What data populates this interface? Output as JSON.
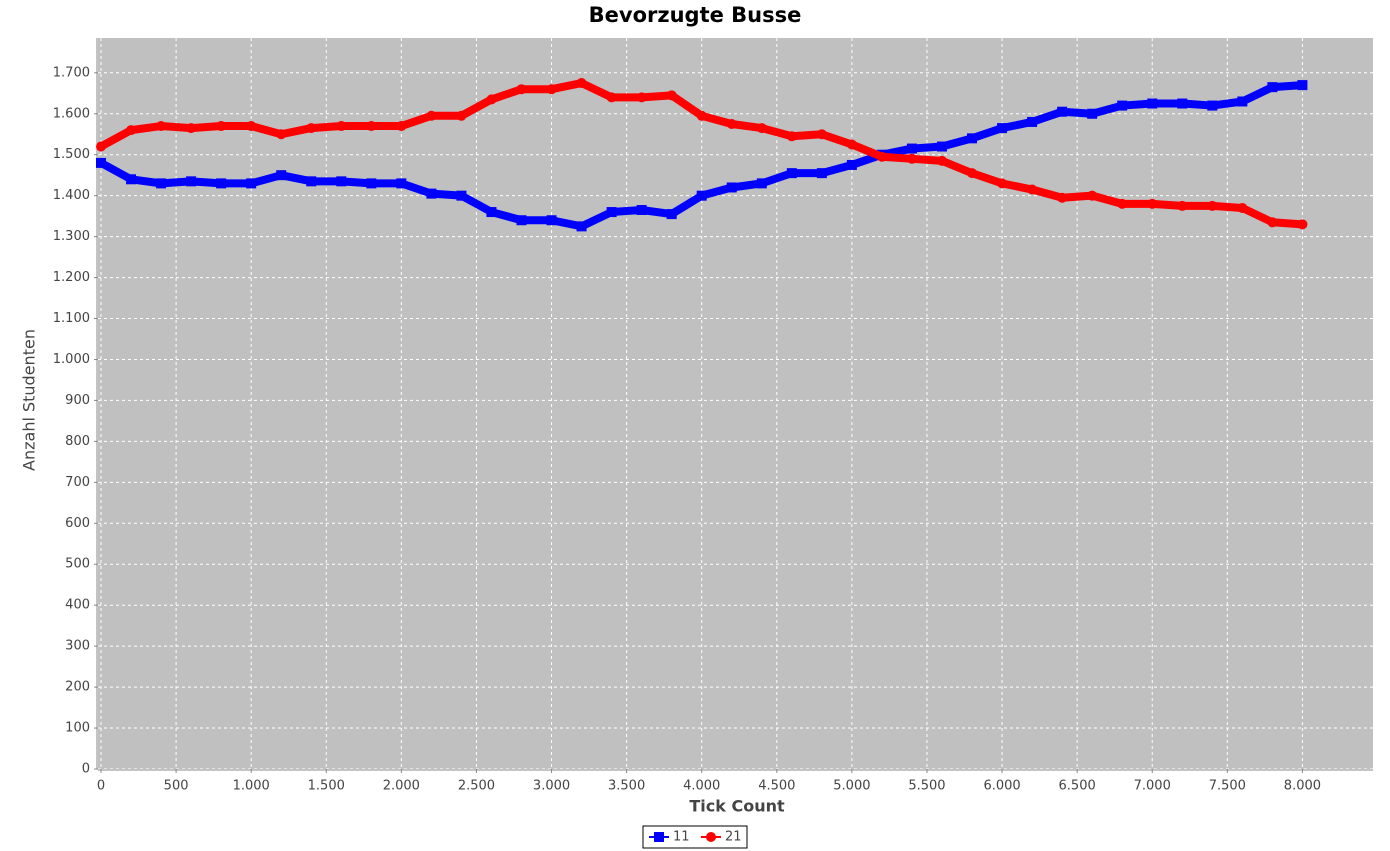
{
  "chart_data": {
    "type": "line",
    "title": "Bevorzugte Busse",
    "x_label": "Tick Count",
    "y_label": "Anzahl Studenten",
    "x": [
      0,
      200,
      400,
      600,
      800,
      1000,
      1200,
      1400,
      1600,
      1800,
      2000,
      2200,
      2400,
      2600,
      2800,
      3000,
      3200,
      3400,
      3600,
      3800,
      4000,
      4200,
      4400,
      4600,
      4800,
      5000,
      5200,
      5400,
      5600,
      5800,
      6000,
      6200,
      6400,
      6600,
      6800,
      7000,
      7200,
      7400,
      7600,
      7800,
      8000
    ],
    "series": [
      {
        "name": "11",
        "color": "#0000ff",
        "marker": "square",
        "values": [
          1480,
          1440,
          1430,
          1435,
          1430,
          1430,
          1450,
          1435,
          1435,
          1430,
          1430,
          1405,
          1400,
          1360,
          1340,
          1340,
          1325,
          1360,
          1365,
          1355,
          1400,
          1420,
          1430,
          1455,
          1455,
          1475,
          1500,
          1515,
          1520,
          1540,
          1565,
          1580,
          1605,
          1600,
          1620,
          1625,
          1625,
          1620,
          1630,
          1665,
          1670
        ]
      },
      {
        "name": "21",
        "color": "#ff0000",
        "marker": "circle",
        "values": [
          1520,
          1560,
          1570,
          1565,
          1570,
          1570,
          1550,
          1565,
          1570,
          1570,
          1570,
          1595,
          1595,
          1635,
          1660,
          1660,
          1675,
          1640,
          1640,
          1645,
          1595,
          1575,
          1565,
          1545,
          1550,
          1525,
          1495,
          1490,
          1485,
          1455,
          1430,
          1415,
          1395,
          1400,
          1380,
          1380,
          1375,
          1375,
          1370,
          1335,
          1330
        ]
      }
    ],
    "xlim": [
      -20,
      8470
    ],
    "ylim": [
      0,
      1785
    ],
    "xticks": [
      0,
      500,
      {
        "value": 1000,
        "label": "1.000"
      },
      {
        "value": 1500,
        "label": "1.500"
      },
      {
        "value": 2000,
        "label": "2.000"
      },
      {
        "value": 2500,
        "label": "2.500"
      },
      {
        "value": 3000,
        "label": "3.000"
      },
      {
        "value": 3500,
        "label": "3.500"
      },
      {
        "value": 4000,
        "label": "4.000"
      },
      {
        "value": 4500,
        "label": "4.500"
      },
      {
        "value": 5000,
        "label": "5.000"
      },
      {
        "value": 5500,
        "label": "5.500"
      },
      {
        "value": 6000,
        "label": "6.000"
      },
      {
        "value": 6500,
        "label": "6.500"
      },
      {
        "value": 7000,
        "label": "7.000"
      },
      {
        "value": 7500,
        "label": "7.500"
      },
      {
        "value": 8000,
        "label": "8.000"
      }
    ],
    "yticks": [
      0,
      100,
      200,
      300,
      400,
      500,
      600,
      700,
      800,
      900,
      {
        "value": 1000,
        "label": "1.000"
      },
      {
        "value": 1100,
        "label": "1.100"
      },
      {
        "value": 1200,
        "label": "1.200"
      },
      {
        "value": 1300,
        "label": "1.300"
      },
      {
        "value": 1400,
        "label": "1.400"
      },
      {
        "value": 1500,
        "label": "1.500"
      },
      {
        "value": 1600,
        "label": "1.600"
      },
      {
        "value": 1700,
        "label": "1.700"
      }
    ],
    "grid": true,
    "legend": "bottom"
  }
}
